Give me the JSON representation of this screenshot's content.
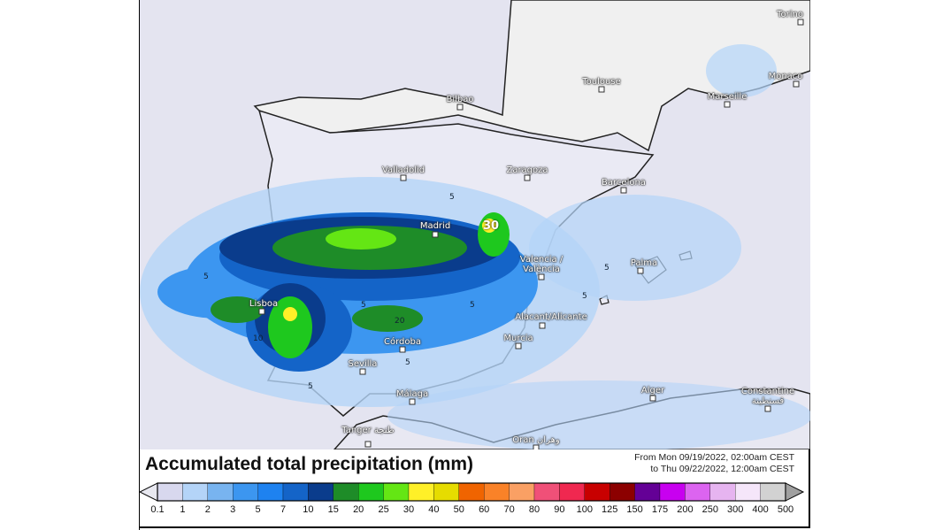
{
  "title": "Accumulated total precipitation (mm)",
  "period": {
    "line1": "From Mon 09/19/2022, 02:00am CEST",
    "line2": "to Thu 09/22/2022, 12:00am CEST"
  },
  "legend": {
    "labels": [
      "0.1",
      "1",
      "2",
      "3",
      "5",
      "7",
      "10",
      "15",
      "20",
      "25",
      "30",
      "40",
      "50",
      "60",
      "70",
      "80",
      "90",
      "100",
      "125",
      "150",
      "175",
      "200",
      "250",
      "300",
      "400",
      "500"
    ],
    "colors": [
      "#d8d8ee",
      "#b4d4f8",
      "#78b4f0",
      "#3c96f0",
      "#1e82f0",
      "#1464c8",
      "#0a3c8c",
      "#1e8c28",
      "#1ec81e",
      "#64e614",
      "#fff028",
      "#e6dc00",
      "#f06400",
      "#fa8228",
      "#faa064",
      "#f05078",
      "#f02850",
      "#c80000",
      "#8c0000",
      "#640096",
      "#c800f0",
      "#dc64f0",
      "#e6b4f0",
      "#f5e6fa",
      "#d2d2d2"
    ],
    "under_color": "#e8e8f0",
    "over_color": "#a0a0a0"
  },
  "cities": [
    {
      "name": "Torino"
    },
    {
      "name": "Toulouse"
    },
    {
      "name": "Monaco"
    },
    {
      "name": "Marseille"
    },
    {
      "name": "Bilbao"
    },
    {
      "name": "Valladolid"
    },
    {
      "name": "Zaragoza"
    },
    {
      "name": "Barcelona"
    },
    {
      "name": "Madrid"
    },
    {
      "name": "Valencia / València"
    },
    {
      "name": "Palma"
    },
    {
      "name": "Lisboa"
    },
    {
      "name": "Córdoba"
    },
    {
      "name": "Alacant/Alicante"
    },
    {
      "name": "Murcia"
    },
    {
      "name": "Sevilla"
    },
    {
      "name": "Málaga"
    },
    {
      "name": "Alger"
    },
    {
      "name": "Constantine قسنطينة"
    },
    {
      "name": "Tanger طنجة"
    },
    {
      "name": "Oran وهران"
    }
  ],
  "contour_labels": [
    "5",
    "5",
    "5",
    "5",
    "5",
    "5",
    "10",
    "20",
    "30",
    "5",
    "5"
  ]
}
